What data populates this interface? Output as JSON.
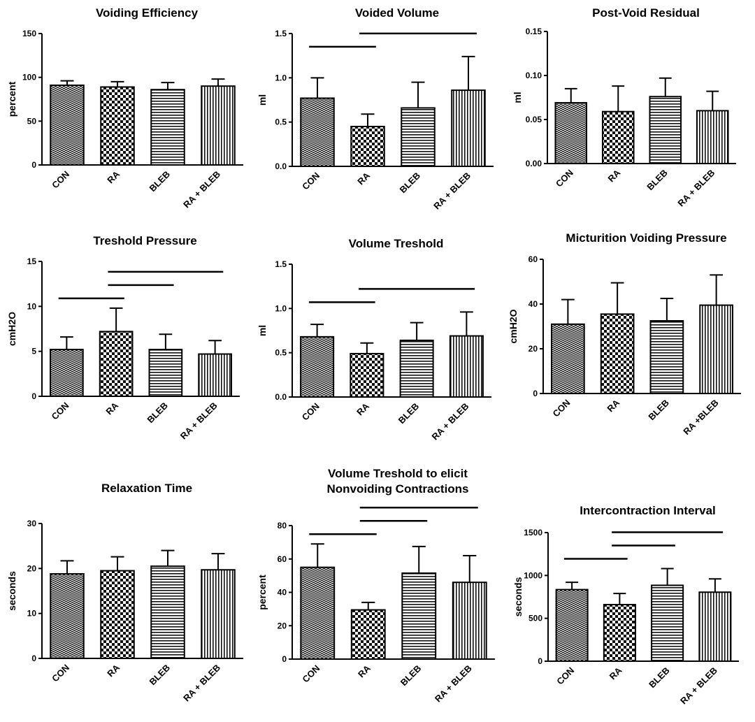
{
  "chart_data": [
    {
      "type": "bar",
      "title": [
        "Voiding Efficiency"
      ],
      "ylabel": "percent",
      "categories": [
        "CON",
        "RA",
        "BLEB",
        "RA + BLEB"
      ],
      "values": [
        91,
        89,
        86,
        90
      ],
      "errors": [
        5,
        6,
        8,
        8
      ],
      "ylim": [
        0,
        150
      ],
      "yticks": [
        "0",
        "50",
        "100",
        "150"
      ],
      "significance": []
    },
    {
      "type": "bar",
      "title": [
        "Voided Volume"
      ],
      "ylabel": "ml",
      "categories": [
        "CON",
        "RA",
        "BLEB",
        "RA + BLEB"
      ],
      "values": [
        0.77,
        0.45,
        0.66,
        0.86
      ],
      "errors": [
        0.23,
        0.14,
        0.29,
        0.38
      ],
      "ylim": [
        0,
        1.5
      ],
      "yticks": [
        "0.0",
        "0.5",
        "1.0",
        "1.5"
      ],
      "significance": [
        [
          0,
          1
        ],
        [
          1,
          3
        ]
      ]
    },
    {
      "type": "bar",
      "title": [
        "Post-Void  Residual"
      ],
      "ylabel": "ml",
      "categories": [
        "CON",
        "RA",
        "BLEB",
        "RA + BLEB"
      ],
      "values": [
        0.069,
        0.059,
        0.076,
        0.06
      ],
      "errors": [
        0.016,
        0.029,
        0.021,
        0.022
      ],
      "ylim": [
        0,
        0.15
      ],
      "yticks": [
        "0.00",
        "0.05",
        "0.10",
        "0.15"
      ],
      "significance": []
    },
    {
      "type": "bar",
      "title": [
        "Treshold Pressure"
      ],
      "ylabel": "cmH2O",
      "categories": [
        "CON",
        "RA",
        "BLEB",
        "RA + BLEB"
      ],
      "values": [
        5.2,
        7.2,
        5.2,
        4.7
      ],
      "errors": [
        1.4,
        2.6,
        1.7,
        1.5
      ],
      "ylim": [
        0,
        15
      ],
      "yticks": [
        "0",
        "5",
        "10",
        "15"
      ],
      "significance": [
        [
          0,
          1
        ],
        [
          1,
          2
        ],
        [
          1,
          3
        ]
      ]
    },
    {
      "type": "bar",
      "title": [
        "Volume Treshold"
      ],
      "ylabel": "ml",
      "categories": [
        "CON",
        "RA",
        "BLEB",
        "RA + BLEB"
      ],
      "values": [
        0.68,
        0.49,
        0.64,
        0.69
      ],
      "errors": [
        0.14,
        0.12,
        0.2,
        0.27
      ],
      "ylim": [
        0,
        1.5
      ],
      "yticks": [
        "0.0",
        "0.5",
        "1.0",
        "1.5"
      ],
      "significance": [
        [
          0,
          1
        ],
        [
          1,
          3
        ]
      ]
    },
    {
      "type": "bar",
      "title": [
        "Micturition Voiding Pressure"
      ],
      "ylabel": "cmH2O",
      "categories": [
        "CON",
        "RA",
        "BLEB",
        "RA +BLEB"
      ],
      "values": [
        31,
        35.5,
        32.5,
        39.5
      ],
      "errors": [
        11,
        14,
        10,
        13.5
      ],
      "ylim": [
        0,
        60
      ],
      "yticks": [
        "0",
        "20",
        "40",
        "60"
      ],
      "significance": []
    },
    {
      "type": "bar",
      "title": [
        "Relaxation Time"
      ],
      "ylabel": "seconds",
      "categories": [
        "CON",
        "RA",
        "BLEB",
        "RA + BLEB"
      ],
      "values": [
        18.8,
        19.5,
        20.5,
        19.7
      ],
      "errors": [
        2.9,
        3.1,
        3.5,
        3.6
      ],
      "ylim": [
        0,
        30
      ],
      "yticks": [
        "0",
        "10",
        "20",
        "30"
      ],
      "significance": []
    },
    {
      "type": "bar",
      "title": [
        "Volume Treshold to elicit",
        "Nonvoiding Contractions"
      ],
      "ylabel": "percent",
      "categories": [
        "CON",
        "RA",
        "BLEB",
        "RA + BLEB"
      ],
      "values": [
        55,
        29.5,
        51.5,
        46
      ],
      "errors": [
        14,
        4.5,
        16,
        16
      ],
      "ylim": [
        0,
        80
      ],
      "yticks": [
        "0",
        "20",
        "40",
        "60",
        "80"
      ],
      "significance": [
        [
          0,
          1
        ],
        [
          1,
          2
        ],
        [
          1,
          3
        ]
      ]
    },
    {
      "type": "bar",
      "title": [
        "Intercontraction Interval"
      ],
      "ylabel": "seconds",
      "categories": [
        "CON",
        "RA",
        "BLEB",
        "RA + BLEB"
      ],
      "values": [
        835,
        660,
        885,
        805
      ],
      "errors": [
        85,
        130,
        195,
        155
      ],
      "ylim": [
        0,
        1500
      ],
      "yticks": [
        "0",
        "500",
        "1000",
        "1500"
      ],
      "significance": [
        [
          0,
          1
        ],
        [
          1,
          2
        ],
        [
          1,
          3
        ]
      ]
    }
  ]
}
